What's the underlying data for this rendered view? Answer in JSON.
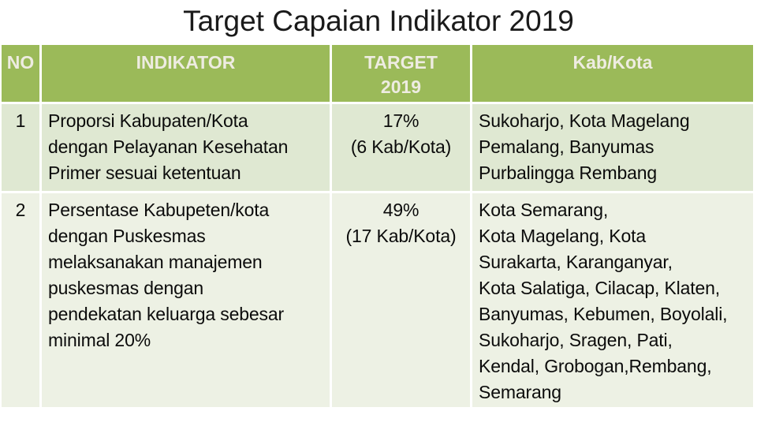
{
  "slide_title": "Target Capaian Indikator 2019",
  "colors": {
    "header_bg": "#9bba59",
    "header_text": "#eeece1",
    "row1_bg": "#dfe8d2",
    "row2_bg": "#edf1e4",
    "body_text": "#0b0b0b",
    "title_text": "#1a1a1a",
    "grid_line": "#ffffff"
  },
  "table": {
    "headers": {
      "no": "NO",
      "indikator": "INDIKATOR",
      "target_lines": [
        "TARGET",
        "2019"
      ],
      "kab_kota": "Kab/Kota"
    },
    "rows": [
      {
        "no": "1",
        "indikator_lines": [
          "Proporsi Kabupaten/Kota",
          "dengan Pelayanan Kesehatan",
          "Primer sesuai ketentuan"
        ],
        "target_lines": [
          "17%",
          "(6 Kab/Kota)"
        ],
        "kab_kota_lines": [
          "Sukoharjo, Kota Magelang",
          "Pemalang, Banyumas",
          "Purbalingga Rembang"
        ]
      },
      {
        "no": "2",
        "indikator_lines": [
          "Persentase Kabupeten/kota",
          "dengan Puskesmas",
          "melaksanakan manajemen",
          "puskesmas dengan",
          "pendekatan keluarga sebesar",
          "minimal 20%"
        ],
        "target_lines": [
          "49%",
          "(17 Kab/Kota)"
        ],
        "kab_kota_lines": [
          "Kota Semarang,",
          "Kota Magelang, Kota",
          "Surakarta, Karanganyar,",
          "Kota Salatiga, Cilacap, Klaten,",
          "Banyumas, Kebumen, Boyolali,",
          "Sukoharjo, Sragen, Pati,",
          "Kendal, Grobogan,Rembang,",
          "Semarang"
        ]
      }
    ]
  }
}
